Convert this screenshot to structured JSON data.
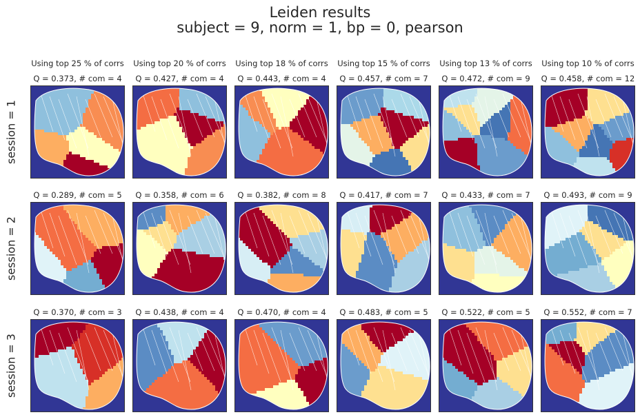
{
  "figure": {
    "title_line1": "Leiden results",
    "title_line2": "subject = 9,   norm = 1,   bp = 0,   pearson"
  },
  "chart_data": {
    "type": "heatmap",
    "columns": [
      "Using top 25 % of corrs",
      "Using top 20 % of corrs",
      "Using top 18 % of corrs",
      "Using top 15 % of corrs",
      "Using top 13 % of corrs",
      "Using top 10 % of corrs"
    ],
    "rows": [
      "session = 1",
      "session = 2",
      "session = 3"
    ],
    "panels": [
      [
        {
          "title": "Q = 0.373,  # com = 4",
          "Q": 0.373,
          "com": 4
        },
        {
          "title": "Q = 0.427,  # com = 4",
          "Q": 0.427,
          "com": 4
        },
        {
          "title": "Q = 0.443,  # com = 4",
          "Q": 0.443,
          "com": 4
        },
        {
          "title": "Q = 0.457,  # com = 7",
          "Q": 0.457,
          "com": 7
        },
        {
          "title": "Q = 0.472,  # com = 9",
          "Q": 0.472,
          "com": 9
        },
        {
          "title": "Q = 0.458,  # com = 12",
          "Q": 0.458,
          "com": 12
        }
      ],
      [
        {
          "title": "Q = 0.289,  # com = 5",
          "Q": 0.289,
          "com": 5
        },
        {
          "title": "Q = 0.358,  # com = 6",
          "Q": 0.358,
          "com": 6
        },
        {
          "title": "Q = 0.382,  # com = 8",
          "Q": 0.382,
          "com": 8
        },
        {
          "title": "Q = 0.417,  # com = 7",
          "Q": 0.417,
          "com": 7
        },
        {
          "title": "Q = 0.433,  # com = 7",
          "Q": 0.433,
          "com": 7
        },
        {
          "title": "Q = 0.493,  # com = 9",
          "Q": 0.493,
          "com": 9
        }
      ],
      [
        {
          "title": "Q = 0.370,  # com = 3",
          "Q": 0.37,
          "com": 3
        },
        {
          "title": "Q = 0.438,  # com = 4",
          "Q": 0.438,
          "com": 4
        },
        {
          "title": "Q = 0.470,  # com = 4",
          "Q": 0.47,
          "com": 4
        },
        {
          "title": "Q = 0.483,  # com = 5",
          "Q": 0.483,
          "com": 5
        },
        {
          "title": "Q = 0.522,  # com = 5",
          "Q": 0.522,
          "com": 5
        },
        {
          "title": "Q = 0.552,  # com = 7",
          "Q": 0.552,
          "com": 7
        }
      ]
    ],
    "background_color": "#313695",
    "colormap": [
      "#a50026",
      "#d73027",
      "#f46d43",
      "#fdae61",
      "#fee090",
      "#ffffbf",
      "#e0f3f8",
      "#abd9e9",
      "#74add1",
      "#4575b4"
    ],
    "panel_region_colors": [
      [
        [
          "#8fc0dd",
          "#ffffbf",
          "#f88d52",
          "#fdae61",
          "#a50026"
        ],
        [
          "#8fc0dd",
          "#ffffbf",
          "#f88d52",
          "#f46d43",
          "#a50026"
        ],
        [
          "#8fc0dd",
          "#ffffbf",
          "#f88d52",
          "#f46d43",
          "#a50026"
        ],
        [
          "#e4f4e8",
          "#4575b4",
          "#abd9e9",
          "#fdae61",
          "#fee090",
          "#6b9ccc",
          "#a50026"
        ],
        [
          "#bfe2ee",
          "#4575b4",
          "#8fc0dd",
          "#e4f4e8",
          "#fee090",
          "#6b9ccc",
          "#f46d43",
          "#a50026"
        ],
        [
          "#4575b4",
          "#6b9ccc",
          "#8fc0dd",
          "#bfe2ee",
          "#fee090",
          "#fdae61",
          "#d73027",
          "#a50026"
        ]
      ],
      [
        [
          "#e0f3f8",
          "#74add1",
          "#fdae61",
          "#f46d43",
          "#a50026"
        ],
        [
          "#5b8cc4",
          "#a9cfe4",
          "#ffffbf",
          "#fdae61",
          "#fee090",
          "#a50026"
        ],
        [
          "#5b8cc4",
          "#a9cfe4",
          "#d7eef5",
          "#fdae61",
          "#fee090",
          "#a50026"
        ],
        [
          "#5b8cc4",
          "#a9cfe4",
          "#d7eef5",
          "#fdae61",
          "#fee090",
          "#a50026"
        ],
        [
          "#5b8cc4",
          "#8fc0dd",
          "#e4f4e8",
          "#fdae61",
          "#fee090",
          "#ffffbf"
        ],
        [
          "#a9cfe4",
          "#4575b4",
          "#74add1",
          "#ffffbf",
          "#e0f3f8",
          "#fee090"
        ]
      ],
      [
        [
          "#bfe2ee",
          "#fdae61",
          "#a50026",
          "#d73027"
        ],
        [
          "#bfe2ee",
          "#5b8cc4",
          "#f46d43",
          "#a50026"
        ],
        [
          "#ffffbf",
          "#6b9ccc",
          "#f46d43",
          "#a50026"
        ],
        [
          "#e0f3f8",
          "#6b9ccc",
          "#a50026",
          "#fdae61",
          "#fee090"
        ],
        [
          "#fee090",
          "#74add1",
          "#a9cfe4",
          "#f46d43",
          "#a50026"
        ],
        [
          "#e0f3f8",
          "#74add1",
          "#5b8cc4",
          "#f46d43",
          "#fee090",
          "#a50026"
        ]
      ]
    ]
  }
}
